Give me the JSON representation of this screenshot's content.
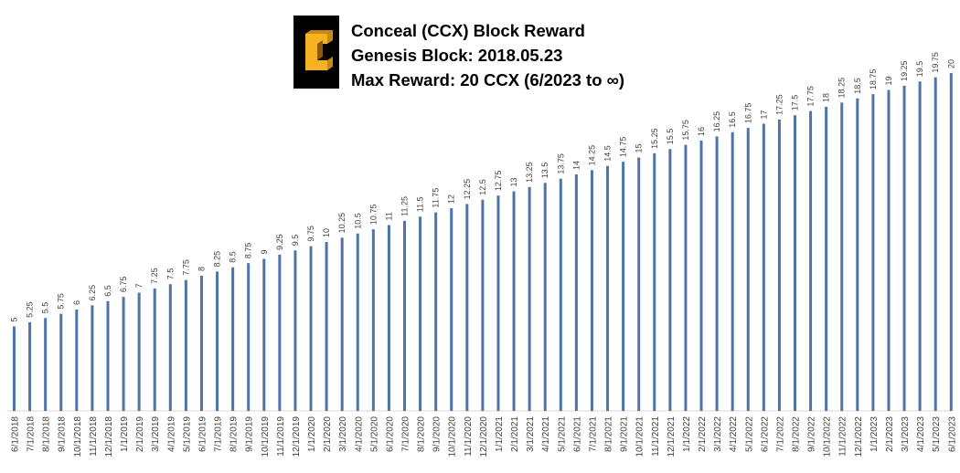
{
  "logo": {
    "icon": "conceal-c-logo-icon",
    "background_color": "#000000",
    "glyph_color": "#f5b324",
    "glyph_shade_color": "#c98a12"
  },
  "chart_data": {
    "type": "bar",
    "title_lines": [
      "Conceal (CCX) Block Reward",
      "Genesis Block: 2018.05.23",
      "Max Reward: 20 CCX (6/2023 to ∞)"
    ],
    "xlabel": "",
    "ylabel": "",
    "ylim": [
      0,
      22
    ],
    "grid": false,
    "legend": "none",
    "bar_color": "#4e74a8",
    "categories": [
      "6/1/2018",
      "7/1/2018",
      "8/1/2018",
      "9/1/2018",
      "10/1/2018",
      "11/1/2018",
      "12/1/2018",
      "1/1/2019",
      "2/1/2019",
      "3/1/2019",
      "4/1/2019",
      "5/1/2019",
      "6/1/2019",
      "7/1/2019",
      "8/1/2019",
      "9/1/2019",
      "10/1/2019",
      "11/1/2019",
      "12/1/2019",
      "1/1/2020",
      "2/1/2020",
      "3/1/2020",
      "4/1/2020",
      "5/1/2020",
      "6/1/2020",
      "7/1/2020",
      "8/1/2020",
      "9/1/2020",
      "10/1/2020",
      "11/1/2020",
      "12/1/2020",
      "1/1/2021",
      "2/1/2021",
      "3/1/2021",
      "4/1/2021",
      "5/1/2021",
      "6/1/2021",
      "7/1/2021",
      "8/1/2021",
      "9/1/2021",
      "10/1/2021",
      "11/1/2021",
      "12/1/2021",
      "1/1/2022",
      "2/1/2022",
      "3/1/2022",
      "4/1/2022",
      "5/1/2022",
      "6/1/2022",
      "7/1/2022",
      "8/1/2022",
      "9/1/2022",
      "10/1/2022",
      "11/1/2022",
      "12/1/2022",
      "1/1/2023",
      "2/1/2023",
      "3/1/2023",
      "4/1/2023",
      "5/1/2023",
      "6/1/2023"
    ],
    "values": [
      5,
      5.25,
      5.5,
      5.75,
      6,
      6.25,
      6.5,
      6.75,
      7,
      7.25,
      7.5,
      7.75,
      8,
      8.25,
      8.5,
      8.75,
      9,
      9.25,
      9.5,
      9.75,
      10,
      10.25,
      10.5,
      10.75,
      11,
      11.25,
      11.5,
      11.75,
      12,
      12.25,
      12.5,
      12.75,
      13,
      13.25,
      13.5,
      13.75,
      14,
      14.25,
      14.5,
      14.75,
      15,
      15.25,
      15.5,
      15.75,
      16,
      16.25,
      16.5,
      16.75,
      17,
      17.25,
      17.5,
      17.75,
      18,
      18.25,
      18.5,
      18.75,
      19,
      19.25,
      19.5,
      19.75,
      20
    ],
    "data_labels": [
      "5",
      "5.25",
      "5.5",
      "5.75",
      "6",
      "6.25",
      "6.5",
      "6.75",
      "7",
      "7.25",
      "7.5",
      "7.75",
      "8",
      "8.25",
      "8.5",
      "8.75",
      "9",
      "9.25",
      "9.5",
      "9.75",
      "10",
      "10.25",
      "10.5",
      "10.75",
      "11",
      "11.25",
      "11.5",
      "11.75",
      "12",
      "12.25",
      "12.5",
      "12.75",
      "13",
      "13.25",
      "13.5",
      "13.75",
      "14",
      "14.25",
      "14.5",
      "14.75",
      "15",
      "15.25",
      "15.5",
      "15.75",
      "16",
      "16.25",
      "16.5",
      "16.75",
      "17",
      "17.25",
      "17.5",
      "17.75",
      "18",
      "18.25",
      "18.5",
      "18.75",
      "19",
      "19.25",
      "19.5",
      "19.75",
      "20"
    ]
  }
}
